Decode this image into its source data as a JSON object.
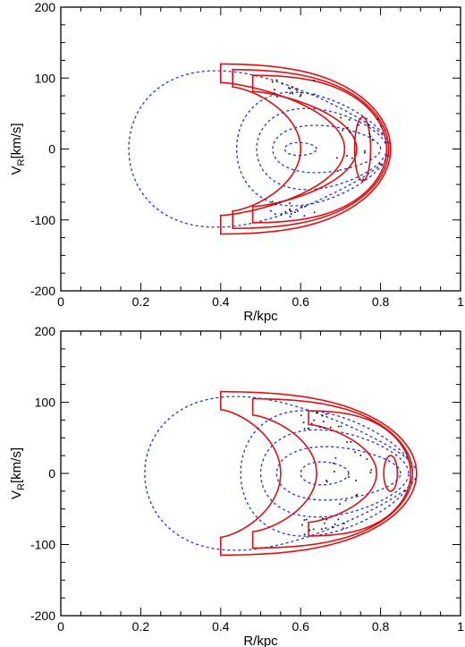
{
  "chart_data": [
    {
      "type": "line",
      "xlabel": "R/kpc",
      "ylabel_main": "V",
      "ylabel_sub": "R",
      "ylabel_unit": "[km/s]",
      "xlim": [
        0,
        1
      ],
      "ylim": [
        -200,
        200
      ],
      "xticks": [
        "0",
        "0.2",
        "0.4",
        "0.6",
        "0.8",
        "1"
      ],
      "xtick_values": [
        0,
        0.2,
        0.4,
        0.6,
        0.8,
        1
      ],
      "yticks": [
        "-200",
        "-100",
        "0",
        "100",
        "200"
      ],
      "ytick_values": [
        -200,
        -100,
        0,
        100,
        200
      ],
      "colors": {
        "dotted": "#2233dd",
        "solid": "#dd1111",
        "points": "#000000"
      },
      "dotted_curves": [
        {
          "rmin": 0.52,
          "rmax": 0.825,
          "vmax": 148,
          "skew": 1.0
        },
        {
          "rmin": 0.44,
          "rmax": 0.82,
          "vmax": 100,
          "skew": 0.85
        },
        {
          "rmin": 0.49,
          "rmax": 0.815,
          "vmax": 70,
          "skew": 0.75
        },
        {
          "rmin": 0.53,
          "rmax": 0.8,
          "vmax": 40,
          "skew": 0.65
        },
        {
          "rmin": 0.56,
          "rmax": 0.64,
          "vmax": 10,
          "skew": 0.3
        }
      ],
      "solid_curves": [
        {
          "shape": "outer",
          "rin": 0.4,
          "rout": 0.825,
          "vmax": 120,
          "notch_r": 0.71
        },
        {
          "shape": "middle",
          "rin": 0.43,
          "rout": 0.82,
          "vmax": 112,
          "notch_r": 0.6
        },
        {
          "shape": "inner",
          "rin": 0.48,
          "rout": 0.815,
          "vmax": 104,
          "notch_r": 0.74
        },
        {
          "shape": "island",
          "r": 0.755,
          "v": 0,
          "dr": 0.02,
          "dv": 45
        }
      ],
      "points_bands": [
        {
          "r": 0.58,
          "v": 85,
          "n": 18
        },
        {
          "r": 0.58,
          "v": -85,
          "n": 18
        },
        {
          "r": 0.75,
          "v": 0,
          "n": 20
        }
      ]
    },
    {
      "type": "line",
      "xlabel": "R/kpc",
      "ylabel_main": "V",
      "ylabel_sub": "R",
      "ylabel_unit": "[km/s]",
      "xlim": [
        0,
        1
      ],
      "ylim": [
        -200,
        200
      ],
      "xticks": [
        "0",
        "0.2",
        "0.4",
        "0.6",
        "0.8",
        "1"
      ],
      "xtick_values": [
        0,
        0.2,
        0.4,
        0.6,
        0.8,
        1
      ],
      "yticks": [
        "-200",
        "-100",
        "0",
        "100",
        "200"
      ],
      "ytick_values": [
        -200,
        -100,
        0,
        100,
        200
      ],
      "colors": {
        "dotted": "#2233dd",
        "solid": "#dd1111",
        "points": "#000000"
      },
      "dotted_curves": [
        {
          "rmin": 0.62,
          "rmax": 0.89,
          "vmax": 145,
          "skew": 1.0
        },
        {
          "rmin": 0.45,
          "rmax": 0.88,
          "vmax": 110,
          "skew": 0.85
        },
        {
          "rmin": 0.5,
          "rmax": 0.87,
          "vmax": 75,
          "skew": 0.75
        },
        {
          "rmin": 0.54,
          "rmax": 0.85,
          "vmax": 45,
          "skew": 0.65
        },
        {
          "rmin": 0.6,
          "rmax": 0.72,
          "vmax": 18,
          "skew": 0.35
        }
      ],
      "solid_curves": [
        {
          "shape": "outer",
          "rin": 0.4,
          "rout": 0.89,
          "vmax": 115,
          "notch_r": 0.55
        },
        {
          "shape": "middle",
          "rin": 0.48,
          "rout": 0.88,
          "vmax": 105,
          "notch_r": 0.64
        },
        {
          "shape": "inner",
          "rin": 0.62,
          "rout": 0.875,
          "vmax": 88,
          "notch_r": 0.79
        },
        {
          "shape": "island",
          "r": 0.825,
          "v": 0,
          "dr": 0.017,
          "dv": 25
        }
      ],
      "points_bands": [
        {
          "r": 0.66,
          "v": 75,
          "n": 16
        },
        {
          "r": 0.66,
          "v": -75,
          "n": 16
        },
        {
          "r": 0.72,
          "v": 0,
          "n": 18
        }
      ]
    }
  ]
}
